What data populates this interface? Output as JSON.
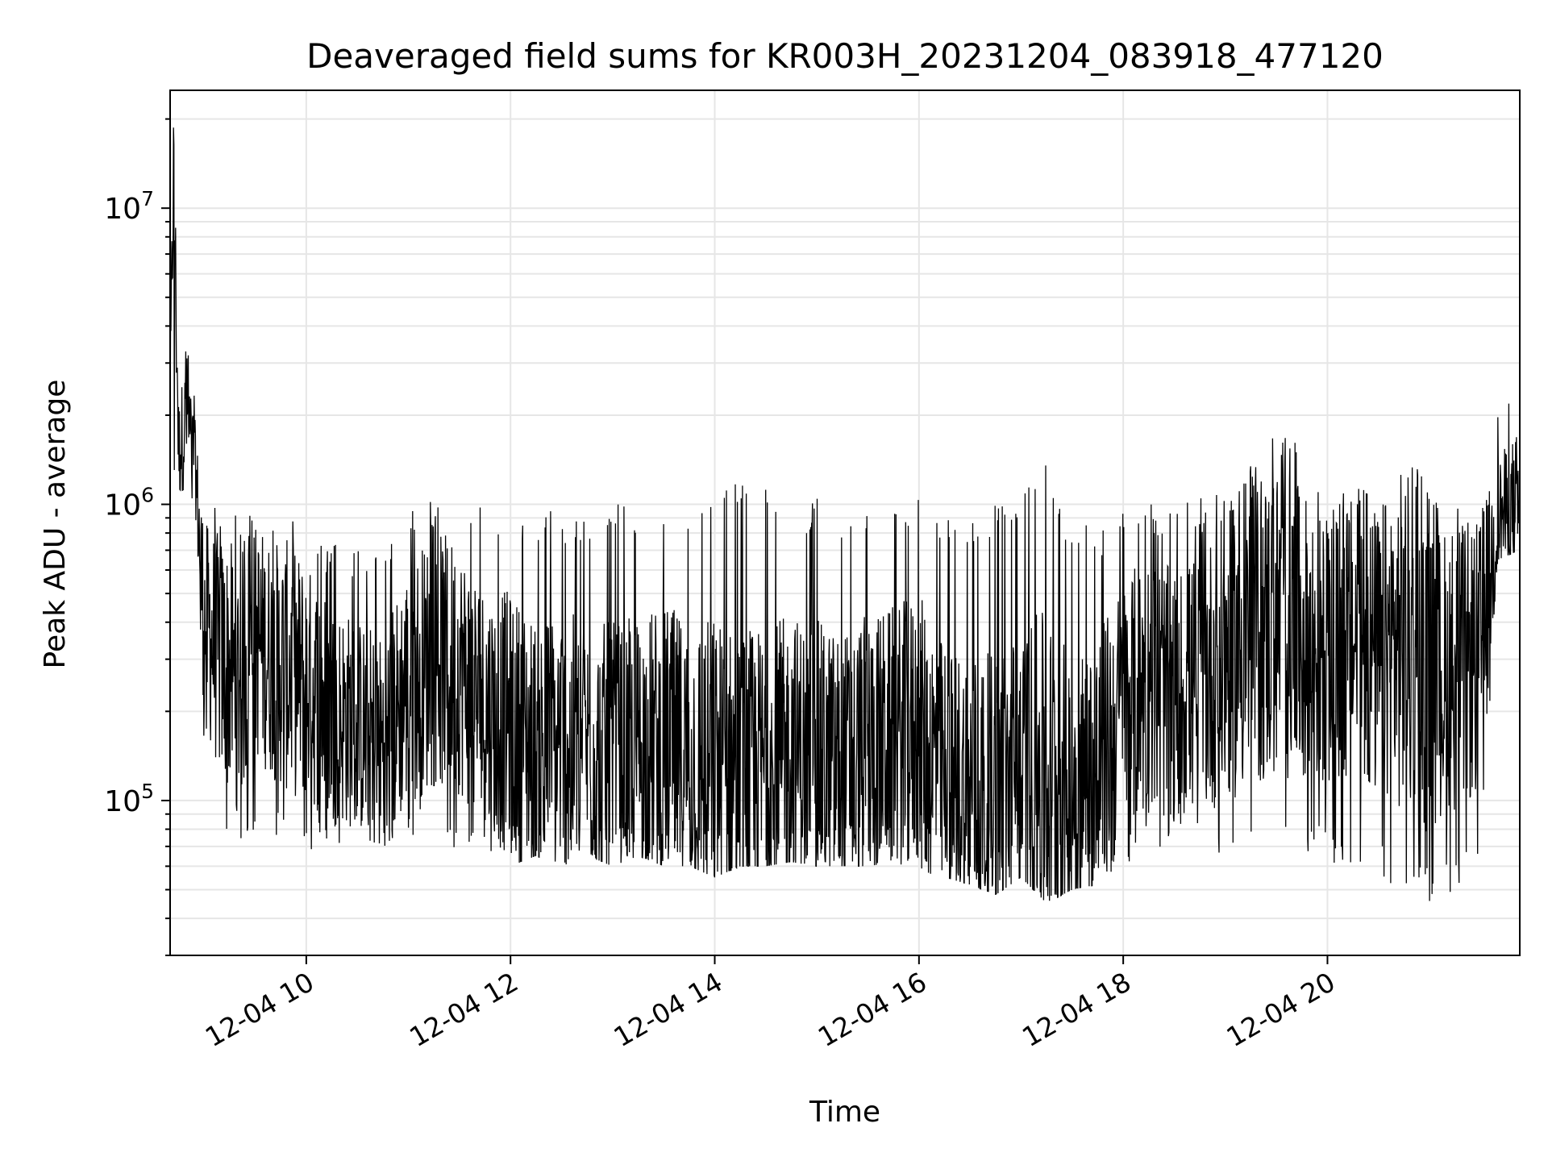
{
  "chart_data": {
    "type": "line",
    "title": "Deaveraged field sums for KR003H_20231204_083918_477120",
    "xlabel": "Time",
    "ylabel": "Peak ADU - average",
    "yscale": "log",
    "xlim": [
      "2023-12-04 08:40",
      "2023-12-04 21:53"
    ],
    "ylim": [
      30000,
      25000000
    ],
    "grid": true,
    "line_color": "#000000",
    "grid_color": "#e6e6e6",
    "x_ticks": [
      "2023-12-04 10:00",
      "2023-12-04 12:00",
      "2023-12-04 14:00",
      "2023-12-04 16:00",
      "2023-12-04 18:00",
      "2023-12-04 20:00"
    ],
    "x_tick_labels": [
      "12-04 10",
      "12-04 12",
      "12-04 14",
      "12-04 16",
      "12-04 18",
      "12-04 20"
    ],
    "y_ticks": [
      100000,
      1000000,
      10000000
    ],
    "y_tick_labels": [
      {
        "base": "10",
        "exp": "5"
      },
      {
        "base": "10",
        "exp": "6"
      },
      {
        "base": "10",
        "exp": "7"
      }
    ],
    "series": [
      {
        "x": [
          "2023-12-04 08:40",
          "2023-12-04 08:42",
          "2023-12-04 08:45",
          "2023-12-04 08:50",
          "2023-12-04 08:55",
          "2023-12-04 09:00",
          "2023-12-04 09:10",
          "2023-12-04 09:20",
          "2023-12-04 09:30",
          "2023-12-04 09:40",
          "2023-12-04 09:50",
          "2023-12-04 10:00",
          "2023-12-04 10:15",
          "2023-12-04 10:30",
          "2023-12-04 10:45",
          "2023-12-04 11:00",
          "2023-12-04 11:15",
          "2023-12-04 11:30",
          "2023-12-04 11:45",
          "2023-12-04 12:00",
          "2023-12-04 12:15",
          "2023-12-04 12:30",
          "2023-12-04 12:45",
          "2023-12-04 13:00",
          "2023-12-04 13:15",
          "2023-12-04 13:30",
          "2023-12-04 13:45",
          "2023-12-04 14:00",
          "2023-12-04 14:15",
          "2023-12-04 14:30",
          "2023-12-04 14:45",
          "2023-12-04 15:00",
          "2023-12-04 15:15",
          "2023-12-04 15:30",
          "2023-12-04 15:45",
          "2023-12-04 16:00",
          "2023-12-04 16:15",
          "2023-12-04 16:30",
          "2023-12-04 16:45",
          "2023-12-04 17:00",
          "2023-12-04 17:15",
          "2023-12-04 17:30",
          "2023-12-04 17:45",
          "2023-12-04 18:00",
          "2023-12-04 18:15",
          "2023-12-04 18:30",
          "2023-12-04 18:45",
          "2023-12-04 19:00",
          "2023-12-04 19:15",
          "2023-12-04 19:30",
          "2023-12-04 19:45",
          "2023-12-04 20:00",
          "2023-12-04 20:15",
          "2023-12-04 20:30",
          "2023-12-04 20:45",
          "2023-12-04 21:00",
          "2023-12-04 21:15",
          "2023-12-04 21:30",
          "2023-12-04 21:40",
          "2023-12-04 21:53"
        ],
        "y": [
          1800000,
          18000000,
          1500000,
          2000000,
          1300000,
          400000,
          300000,
          250000,
          350000,
          300000,
          280000,
          250000,
          200000,
          180000,
          150000,
          250000,
          300000,
          280000,
          200000,
          180000,
          150000,
          160000,
          150000,
          140000,
          150000,
          160000,
          140000,
          130000,
          120000,
          130000,
          150000,
          140000,
          130000,
          150000,
          160000,
          170000,
          120000,
          110000,
          100000,
          130000,
          120000,
          110000,
          130000,
          200000,
          250000,
          220000,
          250000,
          300000,
          350000,
          400000,
          350000,
          300000,
          350000,
          300000,
          350000,
          250000,
          280000,
          300000,
          900000,
          1000000
        ],
        "band": {
          "min": [
            1100000,
            1200000,
            900000,
            1100000,
            900000,
            150000,
            75000,
            70000,
            80000,
            75000,
            70000,
            65000,
            70000,
            75000,
            70000,
            75000,
            70000,
            65000,
            70000,
            60000,
            65000,
            60000,
            65000,
            60000,
            65000,
            60000,
            60000,
            55000,
            60000,
            60000,
            62000,
            60000,
            60000,
            60000,
            62000,
            58000,
            55000,
            52000,
            48000,
            55000,
            45000,
            50000,
            52000,
            60000,
            65000,
            70000,
            65000,
            60000,
            60000,
            65000,
            70000,
            60000,
            60000,
            55000,
            50000,
            45000,
            50000,
            55000,
            650000,
            700000
          ],
          "max": [
            3200000,
            19000000,
            2700000,
            4100000,
            2300000,
            1250000,
            1000000,
            950000,
            950000,
            900000,
            1000000,
            800000,
            750000,
            700000,
            800000,
            950000,
            1050000,
            900000,
            1000000,
            950000,
            1000000,
            950000,
            900000,
            1000000,
            1000000,
            1050000,
            1050000,
            1300000,
            1250000,
            1150000,
            1000000,
            1050000,
            1000000,
            1000000,
            1000000,
            1050000,
            900000,
            950000,
            1000000,
            1100000,
            1450000,
            850000,
            850000,
            950000,
            1000000,
            1000000,
            1050000,
            1200000,
            1400000,
            1800000,
            1550000,
            1000000,
            1200000,
            1250000,
            1900000,
            1100000,
            1000000,
            1000000,
            2300000,
            3400000
          ]
        }
      }
    ]
  }
}
